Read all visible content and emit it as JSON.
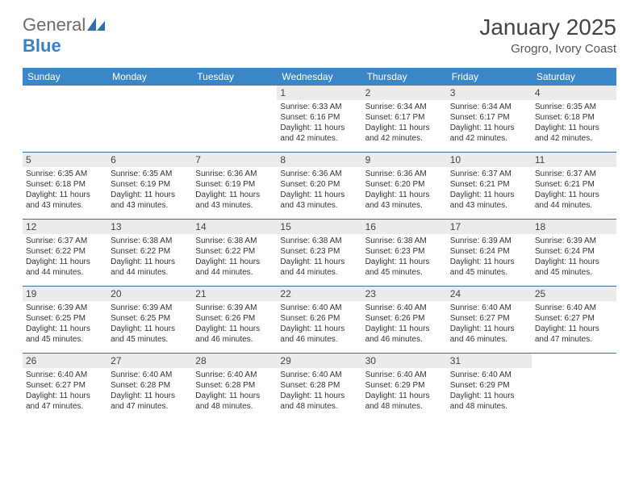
{
  "brand": {
    "part1": "General",
    "part2": "Blue"
  },
  "title": "January 2025",
  "location": "Grogro, Ivory Coast",
  "header_bg": "#3b86c7",
  "divider_color": "#3b6fa0",
  "daynum_bg": "#ebebeb",
  "text_color": "#333333",
  "dow": [
    "Sunday",
    "Monday",
    "Tuesday",
    "Wednesday",
    "Thursday",
    "Friday",
    "Saturday"
  ],
  "weeks": [
    [
      null,
      null,
      null,
      {
        "n": "1",
        "sr": "Sunrise: 6:33 AM",
        "ss": "Sunset: 6:16 PM",
        "dl1": "Daylight: 11 hours",
        "dl2": "and 42 minutes."
      },
      {
        "n": "2",
        "sr": "Sunrise: 6:34 AM",
        "ss": "Sunset: 6:17 PM",
        "dl1": "Daylight: 11 hours",
        "dl2": "and 42 minutes."
      },
      {
        "n": "3",
        "sr": "Sunrise: 6:34 AM",
        "ss": "Sunset: 6:17 PM",
        "dl1": "Daylight: 11 hours",
        "dl2": "and 42 minutes."
      },
      {
        "n": "4",
        "sr": "Sunrise: 6:35 AM",
        "ss": "Sunset: 6:18 PM",
        "dl1": "Daylight: 11 hours",
        "dl2": "and 42 minutes."
      }
    ],
    [
      {
        "n": "5",
        "sr": "Sunrise: 6:35 AM",
        "ss": "Sunset: 6:18 PM",
        "dl1": "Daylight: 11 hours",
        "dl2": "and 43 minutes."
      },
      {
        "n": "6",
        "sr": "Sunrise: 6:35 AM",
        "ss": "Sunset: 6:19 PM",
        "dl1": "Daylight: 11 hours",
        "dl2": "and 43 minutes."
      },
      {
        "n": "7",
        "sr": "Sunrise: 6:36 AM",
        "ss": "Sunset: 6:19 PM",
        "dl1": "Daylight: 11 hours",
        "dl2": "and 43 minutes."
      },
      {
        "n": "8",
        "sr": "Sunrise: 6:36 AM",
        "ss": "Sunset: 6:20 PM",
        "dl1": "Daylight: 11 hours",
        "dl2": "and 43 minutes."
      },
      {
        "n": "9",
        "sr": "Sunrise: 6:36 AM",
        "ss": "Sunset: 6:20 PM",
        "dl1": "Daylight: 11 hours",
        "dl2": "and 43 minutes."
      },
      {
        "n": "10",
        "sr": "Sunrise: 6:37 AM",
        "ss": "Sunset: 6:21 PM",
        "dl1": "Daylight: 11 hours",
        "dl2": "and 43 minutes."
      },
      {
        "n": "11",
        "sr": "Sunrise: 6:37 AM",
        "ss": "Sunset: 6:21 PM",
        "dl1": "Daylight: 11 hours",
        "dl2": "and 44 minutes."
      }
    ],
    [
      {
        "n": "12",
        "sr": "Sunrise: 6:37 AM",
        "ss": "Sunset: 6:22 PM",
        "dl1": "Daylight: 11 hours",
        "dl2": "and 44 minutes."
      },
      {
        "n": "13",
        "sr": "Sunrise: 6:38 AM",
        "ss": "Sunset: 6:22 PM",
        "dl1": "Daylight: 11 hours",
        "dl2": "and 44 minutes."
      },
      {
        "n": "14",
        "sr": "Sunrise: 6:38 AM",
        "ss": "Sunset: 6:22 PM",
        "dl1": "Daylight: 11 hours",
        "dl2": "and 44 minutes."
      },
      {
        "n": "15",
        "sr": "Sunrise: 6:38 AM",
        "ss": "Sunset: 6:23 PM",
        "dl1": "Daylight: 11 hours",
        "dl2": "and 44 minutes."
      },
      {
        "n": "16",
        "sr": "Sunrise: 6:38 AM",
        "ss": "Sunset: 6:23 PM",
        "dl1": "Daylight: 11 hours",
        "dl2": "and 45 minutes."
      },
      {
        "n": "17",
        "sr": "Sunrise: 6:39 AM",
        "ss": "Sunset: 6:24 PM",
        "dl1": "Daylight: 11 hours",
        "dl2": "and 45 minutes."
      },
      {
        "n": "18",
        "sr": "Sunrise: 6:39 AM",
        "ss": "Sunset: 6:24 PM",
        "dl1": "Daylight: 11 hours",
        "dl2": "and 45 minutes."
      }
    ],
    [
      {
        "n": "19",
        "sr": "Sunrise: 6:39 AM",
        "ss": "Sunset: 6:25 PM",
        "dl1": "Daylight: 11 hours",
        "dl2": "and 45 minutes."
      },
      {
        "n": "20",
        "sr": "Sunrise: 6:39 AM",
        "ss": "Sunset: 6:25 PM",
        "dl1": "Daylight: 11 hours",
        "dl2": "and 45 minutes."
      },
      {
        "n": "21",
        "sr": "Sunrise: 6:39 AM",
        "ss": "Sunset: 6:26 PM",
        "dl1": "Daylight: 11 hours",
        "dl2": "and 46 minutes."
      },
      {
        "n": "22",
        "sr": "Sunrise: 6:40 AM",
        "ss": "Sunset: 6:26 PM",
        "dl1": "Daylight: 11 hours",
        "dl2": "and 46 minutes."
      },
      {
        "n": "23",
        "sr": "Sunrise: 6:40 AM",
        "ss": "Sunset: 6:26 PM",
        "dl1": "Daylight: 11 hours",
        "dl2": "and 46 minutes."
      },
      {
        "n": "24",
        "sr": "Sunrise: 6:40 AM",
        "ss": "Sunset: 6:27 PM",
        "dl1": "Daylight: 11 hours",
        "dl2": "and 46 minutes."
      },
      {
        "n": "25",
        "sr": "Sunrise: 6:40 AM",
        "ss": "Sunset: 6:27 PM",
        "dl1": "Daylight: 11 hours",
        "dl2": "and 47 minutes."
      }
    ],
    [
      {
        "n": "26",
        "sr": "Sunrise: 6:40 AM",
        "ss": "Sunset: 6:27 PM",
        "dl1": "Daylight: 11 hours",
        "dl2": "and 47 minutes."
      },
      {
        "n": "27",
        "sr": "Sunrise: 6:40 AM",
        "ss": "Sunset: 6:28 PM",
        "dl1": "Daylight: 11 hours",
        "dl2": "and 47 minutes."
      },
      {
        "n": "28",
        "sr": "Sunrise: 6:40 AM",
        "ss": "Sunset: 6:28 PM",
        "dl1": "Daylight: 11 hours",
        "dl2": "and 48 minutes."
      },
      {
        "n": "29",
        "sr": "Sunrise: 6:40 AM",
        "ss": "Sunset: 6:28 PM",
        "dl1": "Daylight: 11 hours",
        "dl2": "and 48 minutes."
      },
      {
        "n": "30",
        "sr": "Sunrise: 6:40 AM",
        "ss": "Sunset: 6:29 PM",
        "dl1": "Daylight: 11 hours",
        "dl2": "and 48 minutes."
      },
      {
        "n": "31",
        "sr": "Sunrise: 6:40 AM",
        "ss": "Sunset: 6:29 PM",
        "dl1": "Daylight: 11 hours",
        "dl2": "and 48 minutes."
      },
      null
    ]
  ]
}
